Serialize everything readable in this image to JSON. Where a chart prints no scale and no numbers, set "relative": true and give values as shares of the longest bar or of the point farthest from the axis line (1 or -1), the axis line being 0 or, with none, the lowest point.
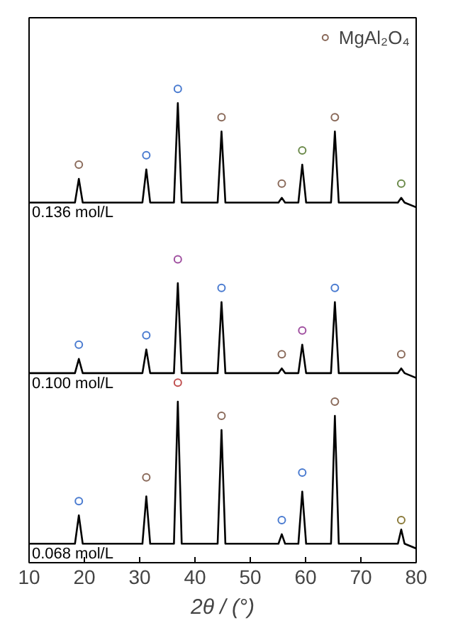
{
  "chart_data": {
    "type": "line",
    "relative": true,
    "xlabel": "2θ / (°)",
    "xlim": [
      10,
      80
    ],
    "xticks": [
      10,
      20,
      30,
      40,
      50,
      60,
      70,
      80
    ],
    "legend": "top right",
    "grid": false,
    "series": [
      {
        "name": "0.136 mol/L",
        "color": "#000000",
        "x": [
          10,
          18.3,
          19,
          19.7,
          30.5,
          31.2,
          31.9,
          36.2,
          36.9,
          37.6,
          44.1,
          44.8,
          45.5,
          55.1,
          55.7,
          56.3,
          58.7,
          59.4,
          60.1,
          64.6,
          65.3,
          66.0,
          76.7,
          77.3,
          77.9,
          80
        ],
        "values": [
          0.76,
          0.76,
          0.81,
          0.76,
          0.76,
          0.83,
          0.76,
          0.76,
          0.97,
          0.76,
          0.76,
          0.91,
          0.76,
          0.76,
          0.77,
          0.76,
          0.76,
          0.84,
          0.76,
          0.76,
          0.91,
          0.76,
          0.76,
          0.77,
          0.76,
          0.75
        ]
      },
      {
        "name": "0.100 mol/L",
        "color": "#000000",
        "x": [
          10,
          18.3,
          19,
          19.7,
          30.5,
          31.2,
          31.9,
          36.2,
          36.9,
          37.6,
          44.1,
          44.8,
          45.5,
          55.1,
          55.7,
          56.3,
          58.7,
          59.4,
          60.1,
          64.6,
          65.3,
          66.0,
          76.7,
          77.3,
          77.9,
          80
        ],
        "values": [
          0.4,
          0.4,
          0.43,
          0.4,
          0.4,
          0.45,
          0.4,
          0.4,
          0.59,
          0.4,
          0.4,
          0.55,
          0.4,
          0.4,
          0.41,
          0.4,
          0.4,
          0.46,
          0.4,
          0.4,
          0.55,
          0.4,
          0.4,
          0.41,
          0.4,
          0.39
        ]
      },
      {
        "name": "0.068 mol/L",
        "color": "#000000",
        "x": [
          10,
          18.3,
          19,
          19.7,
          30.5,
          31.2,
          31.9,
          36.2,
          36.9,
          37.6,
          44.1,
          44.8,
          45.5,
          55.1,
          55.7,
          56.3,
          58.7,
          59.4,
          60.1,
          64.6,
          65.3,
          66.0,
          76.7,
          77.3,
          77.9,
          80
        ],
        "values": [
          0.04,
          0.04,
          0.1,
          0.04,
          0.04,
          0.14,
          0.04,
          0.04,
          0.34,
          0.04,
          0.04,
          0.28,
          0.04,
          0.04,
          0.06,
          0.04,
          0.04,
          0.15,
          0.04,
          0.04,
          0.31,
          0.04,
          0.04,
          0.07,
          0.04,
          0.03
        ]
      },
      {
        "name": "MgAl₂O₄",
        "type": "scatter",
        "marker": "circle",
        "x": [
          19,
          31.2,
          36.9,
          44.8,
          55.7,
          59.4,
          65.3,
          77.3,
          19,
          31.2,
          36.9,
          44.8,
          55.7,
          59.4,
          65.3,
          77.3,
          19,
          31.2,
          36.9,
          44.8,
          55.7,
          59.4,
          65.3,
          77.3
        ],
        "values": [
          0.84,
          0.86,
          1.0,
          0.94,
          0.8,
          0.87,
          0.94,
          0.8,
          0.46,
          0.48,
          0.64,
          0.58,
          0.44,
          0.49,
          0.58,
          0.44,
          0.13,
          0.18,
          0.38,
          0.31,
          0.09,
          0.19,
          0.34,
          0.09
        ],
        "colors": [
          "#8a6a5a",
          "#4a7bd0",
          "#4a7bd0",
          "#8a6a5a",
          "#8a6a5a",
          "#6b8a4a",
          "#8a6a5a",
          "#6b8a4a",
          "#4a7bd0",
          "#4a7bd0",
          "#a050a0",
          "#4a7bd0",
          "#8a6a5a",
          "#a050a0",
          "#4a7bd0",
          "#8a6a5a",
          "#4a7bd0",
          "#8a6a5a",
          "#c05050",
          "#8a6a5a",
          "#4a7bd0",
          "#4a7bd0",
          "#8a6a5a",
          "#8a7a3a"
        ]
      }
    ]
  }
}
